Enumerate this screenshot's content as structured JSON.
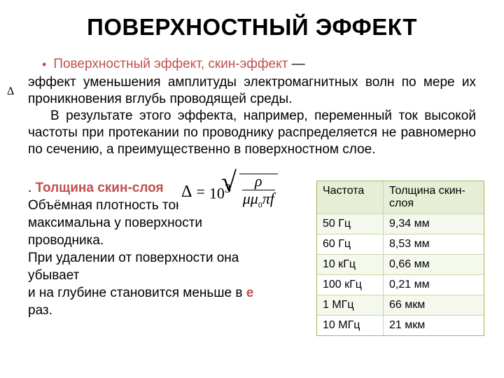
{
  "title": "ПОВЕРХНОСТНЫЙ ЭФФЕКТ",
  "bullet": {
    "marker": "•",
    "highlight": "Поверхностный эффект, скин-эффект",
    "dash": " —"
  },
  "para1": "эффект уменьшения амплитуды электромагнитных волн по мере их проникновения вглубь проводящей среды.",
  "para2": "В результате этого эффекта, например, переменный ток высокой частоты при протекании по проводнику распределяется не равномерно по сечению, а преимущественно в поверхностном слое.",
  "subheading": {
    "dot": ". ",
    "text": "Толщина скин-слоя"
  },
  "line1": "Объёмная плотность тока",
  "line2": "максимальна у поверхности проводника.",
  "line3": "При удалении от поверхности она убывает",
  "line4_a": "и на глубине становится меньше в ",
  "line4_e": "е",
  "line4_b": " раз.",
  "delta_small": "Δ",
  "formula": {
    "delta": "Δ",
    "eq": "=",
    "coef": "10",
    "exp": "3",
    "num": "ρ",
    "den_html": "μμ<sub>0</sub>πf"
  },
  "table": {
    "head": [
      "Частота",
      "Толщина скин-слоя"
    ],
    "rows": [
      [
        "50 Гц",
        "9,34 мм"
      ],
      [
        "60 Гц",
        "8,53 мм"
      ],
      [
        "10 кГц",
        "0,66 мм"
      ],
      [
        "100 кГц",
        "0,21 мм"
      ],
      [
        "1 МГц",
        "66 мкм"
      ],
      [
        "10 МГц",
        "21 мкм"
      ]
    ],
    "colors": {
      "border": "#9bbb59",
      "header_bg": "#e6efd5",
      "alt_bg": "#f4f8ed",
      "plain_bg": "#ffffff"
    }
  }
}
